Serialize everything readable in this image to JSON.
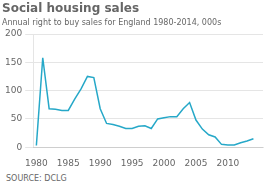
{
  "chart_data": {
    "type": "line",
    "title": "Social housing sales",
    "subtitle": "Annual right to buy sales for England 1980-2014, 000s",
    "source": "SOURCE: DCLG",
    "x": [
      1980,
      1981,
      1982,
      1983,
      1984,
      1985,
      1986,
      1987,
      1988,
      1989,
      1990,
      1991,
      1992,
      1993,
      1994,
      1995,
      1996,
      1997,
      1998,
      1999,
      2000,
      2001,
      2002,
      2003,
      2004,
      2005,
      2006,
      2007,
      2008,
      2009,
      2010,
      2011,
      2012,
      2013,
      2014
    ],
    "values": [
      3,
      158,
      68,
      67,
      65,
      65,
      85,
      103,
      125,
      123,
      68,
      42,
      40,
      37,
      33,
      33,
      37,
      38,
      33,
      50,
      52,
      54,
      54,
      68,
      79,
      48,
      32,
      22,
      18,
      5,
      4,
      4,
      8,
      11,
      15
    ],
    "color": "#26a8c8",
    "xlim": [
      1979.5,
      2015.5
    ],
    "xticks": [
      1980,
      1985,
      1990,
      1995,
      2000,
      2005,
      2010
    ],
    "ylim": [
      0,
      200
    ],
    "yticks": [
      0,
      50,
      100,
      150,
      200
    ],
    "grid": "y"
  }
}
